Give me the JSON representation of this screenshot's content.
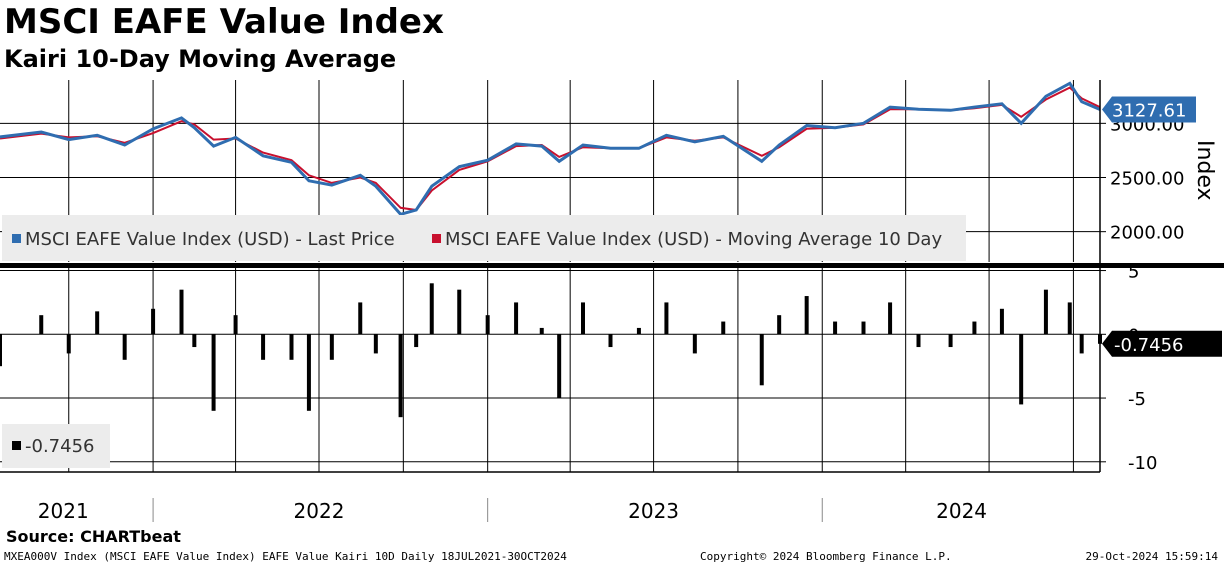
{
  "title": "MSCI EAFE Value Index",
  "subtitle": "Kairi 10-Day Moving Average",
  "source": "Source: CHARTbeat",
  "footer": {
    "left": "MXEA000V Index (MSCI EAFE Value Index) EAFE Value Kairi 10D  Daily 18JUL2021-30OCT2024",
    "center": "Copyright© 2024 Bloomberg Finance L.P.",
    "right": "29-Oct-2024 15:59:14"
  },
  "colors": {
    "price": "#2f6db0",
    "ma": "#c8102e",
    "bars": "#000000",
    "tag_blue": "#2f6db0",
    "tag_black": "#000000"
  },
  "chart_data": [
    {
      "type": "line",
      "ylabel": "Index",
      "yticks": [
        "2000.00",
        "2500.00",
        "3000.00"
      ],
      "ylim": [
        1720,
        3400
      ],
      "xlim": [
        "2021-07-18",
        "2024-10-30"
      ],
      "last_value_label": "3127.61",
      "legend": [
        "MSCI EAFE Value Index (USD) - Last Price",
        "MSCI EAFE Value Index (USD) - Moving Average 10 Day"
      ],
      "series": [
        {
          "name": "MSCI EAFE Value Index (USD) - Last Price",
          "x": [
            "2021-07-18",
            "2021-09-01",
            "2021-10-01",
            "2021-11-01",
            "2021-12-01",
            "2022-01-01",
            "2022-02-01",
            "2022-02-15",
            "2022-03-08",
            "2022-04-01",
            "2022-05-01",
            "2022-06-01",
            "2022-06-20",
            "2022-07-15",
            "2022-08-15",
            "2022-09-01",
            "2022-09-28",
            "2022-10-15",
            "2022-11-01",
            "2022-12-01",
            "2023-01-01",
            "2023-02-01",
            "2023-03-01",
            "2023-03-20",
            "2023-04-15",
            "2023-05-15",
            "2023-06-15",
            "2023-07-15",
            "2023-08-15",
            "2023-09-15",
            "2023-10-27",
            "2023-11-15",
            "2023-12-15",
            "2024-01-15",
            "2024-02-15",
            "2024-03-15",
            "2024-04-15",
            "2024-05-20",
            "2024-06-15",
            "2024-07-15",
            "2024-08-05",
            "2024-09-01",
            "2024-09-27",
            "2024-10-10",
            "2024-10-30"
          ],
          "y": [
            2875,
            2920,
            2850,
            2890,
            2800,
            2950,
            3050,
            2960,
            2790,
            2870,
            2700,
            2640,
            2470,
            2430,
            2520,
            2420,
            2160,
            2200,
            2420,
            2600,
            2660,
            2810,
            2790,
            2650,
            2800,
            2770,
            2770,
            2890,
            2830,
            2880,
            2650,
            2800,
            2980,
            2960,
            3000,
            3150,
            3130,
            3120,
            3150,
            3180,
            3000,
            3250,
            3370,
            3200,
            3127.61
          ]
        },
        {
          "name": "MSCI EAFE Value Index (USD) - Moving Average 10 Day",
          "x": [
            "2021-07-18",
            "2021-09-01",
            "2021-10-01",
            "2021-11-01",
            "2021-12-01",
            "2022-01-01",
            "2022-02-01",
            "2022-02-15",
            "2022-03-08",
            "2022-04-01",
            "2022-05-01",
            "2022-06-01",
            "2022-06-20",
            "2022-07-15",
            "2022-08-15",
            "2022-09-01",
            "2022-09-28",
            "2022-10-15",
            "2022-11-01",
            "2022-12-01",
            "2023-01-01",
            "2023-02-01",
            "2023-03-01",
            "2023-03-20",
            "2023-04-15",
            "2023-05-15",
            "2023-06-15",
            "2023-07-15",
            "2023-08-15",
            "2023-09-15",
            "2023-10-27",
            "2023-11-15",
            "2023-12-15",
            "2024-01-15",
            "2024-02-15",
            "2024-03-15",
            "2024-04-15",
            "2024-05-20",
            "2024-06-15",
            "2024-07-15",
            "2024-08-05",
            "2024-09-01",
            "2024-09-27",
            "2024-10-10",
            "2024-10-30"
          ],
          "y": [
            2860,
            2905,
            2870,
            2880,
            2820,
            2910,
            3020,
            2990,
            2850,
            2860,
            2730,
            2660,
            2520,
            2450,
            2500,
            2450,
            2220,
            2200,
            2380,
            2570,
            2650,
            2790,
            2800,
            2690,
            2780,
            2770,
            2770,
            2870,
            2840,
            2870,
            2700,
            2780,
            2950,
            2960,
            2990,
            3130,
            3130,
            3120,
            3140,
            3170,
            3060,
            3220,
            3330,
            3230,
            3150
          ]
        }
      ]
    },
    {
      "type": "bar",
      "yticks": [
        "5",
        "0",
        "-5",
        "-10"
      ],
      "ylim": [
        -10.8,
        5.2
      ],
      "last_value_label": "-0.7456",
      "legend": [
        "-0.7456"
      ],
      "x": [
        "2021-07-18",
        "2021-09-01",
        "2021-10-01",
        "2021-11-01",
        "2021-12-01",
        "2022-01-01",
        "2022-02-01",
        "2022-02-15",
        "2022-03-08",
        "2022-04-01",
        "2022-05-01",
        "2022-06-01",
        "2022-06-20",
        "2022-07-15",
        "2022-08-15",
        "2022-09-01",
        "2022-09-28",
        "2022-10-15",
        "2022-11-01",
        "2022-12-01",
        "2023-01-01",
        "2023-02-01",
        "2023-03-01",
        "2023-03-20",
        "2023-04-15",
        "2023-05-15",
        "2023-06-15",
        "2023-07-15",
        "2023-08-15",
        "2023-09-15",
        "2023-10-27",
        "2023-11-15",
        "2023-12-15",
        "2024-01-15",
        "2024-02-15",
        "2024-03-15",
        "2024-04-15",
        "2024-05-20",
        "2024-06-15",
        "2024-07-15",
        "2024-08-05",
        "2024-09-01",
        "2024-09-27",
        "2024-10-10",
        "2024-10-30"
      ],
      "values": [
        -2.5,
        1.5,
        -1.5,
        1.8,
        -2.0,
        2.0,
        3.5,
        -1.0,
        -6.0,
        1.5,
        -2.0,
        -2.0,
        -6.0,
        -2.0,
        2.5,
        -1.5,
        -6.5,
        -1.0,
        4.0,
        3.5,
        1.5,
        2.5,
        0.5,
        -5.0,
        2.5,
        -1.0,
        0.5,
        2.5,
        -1.5,
        1.0,
        -4.0,
        1.5,
        3.0,
        1.0,
        1.0,
        2.5,
        -1.0,
        -1.0,
        1.0,
        2.0,
        -5.5,
        3.5,
        2.5,
        -1.5,
        -0.7456
      ]
    }
  ],
  "x_axis_years": [
    "2021",
    "2022",
    "2023",
    "2024"
  ]
}
